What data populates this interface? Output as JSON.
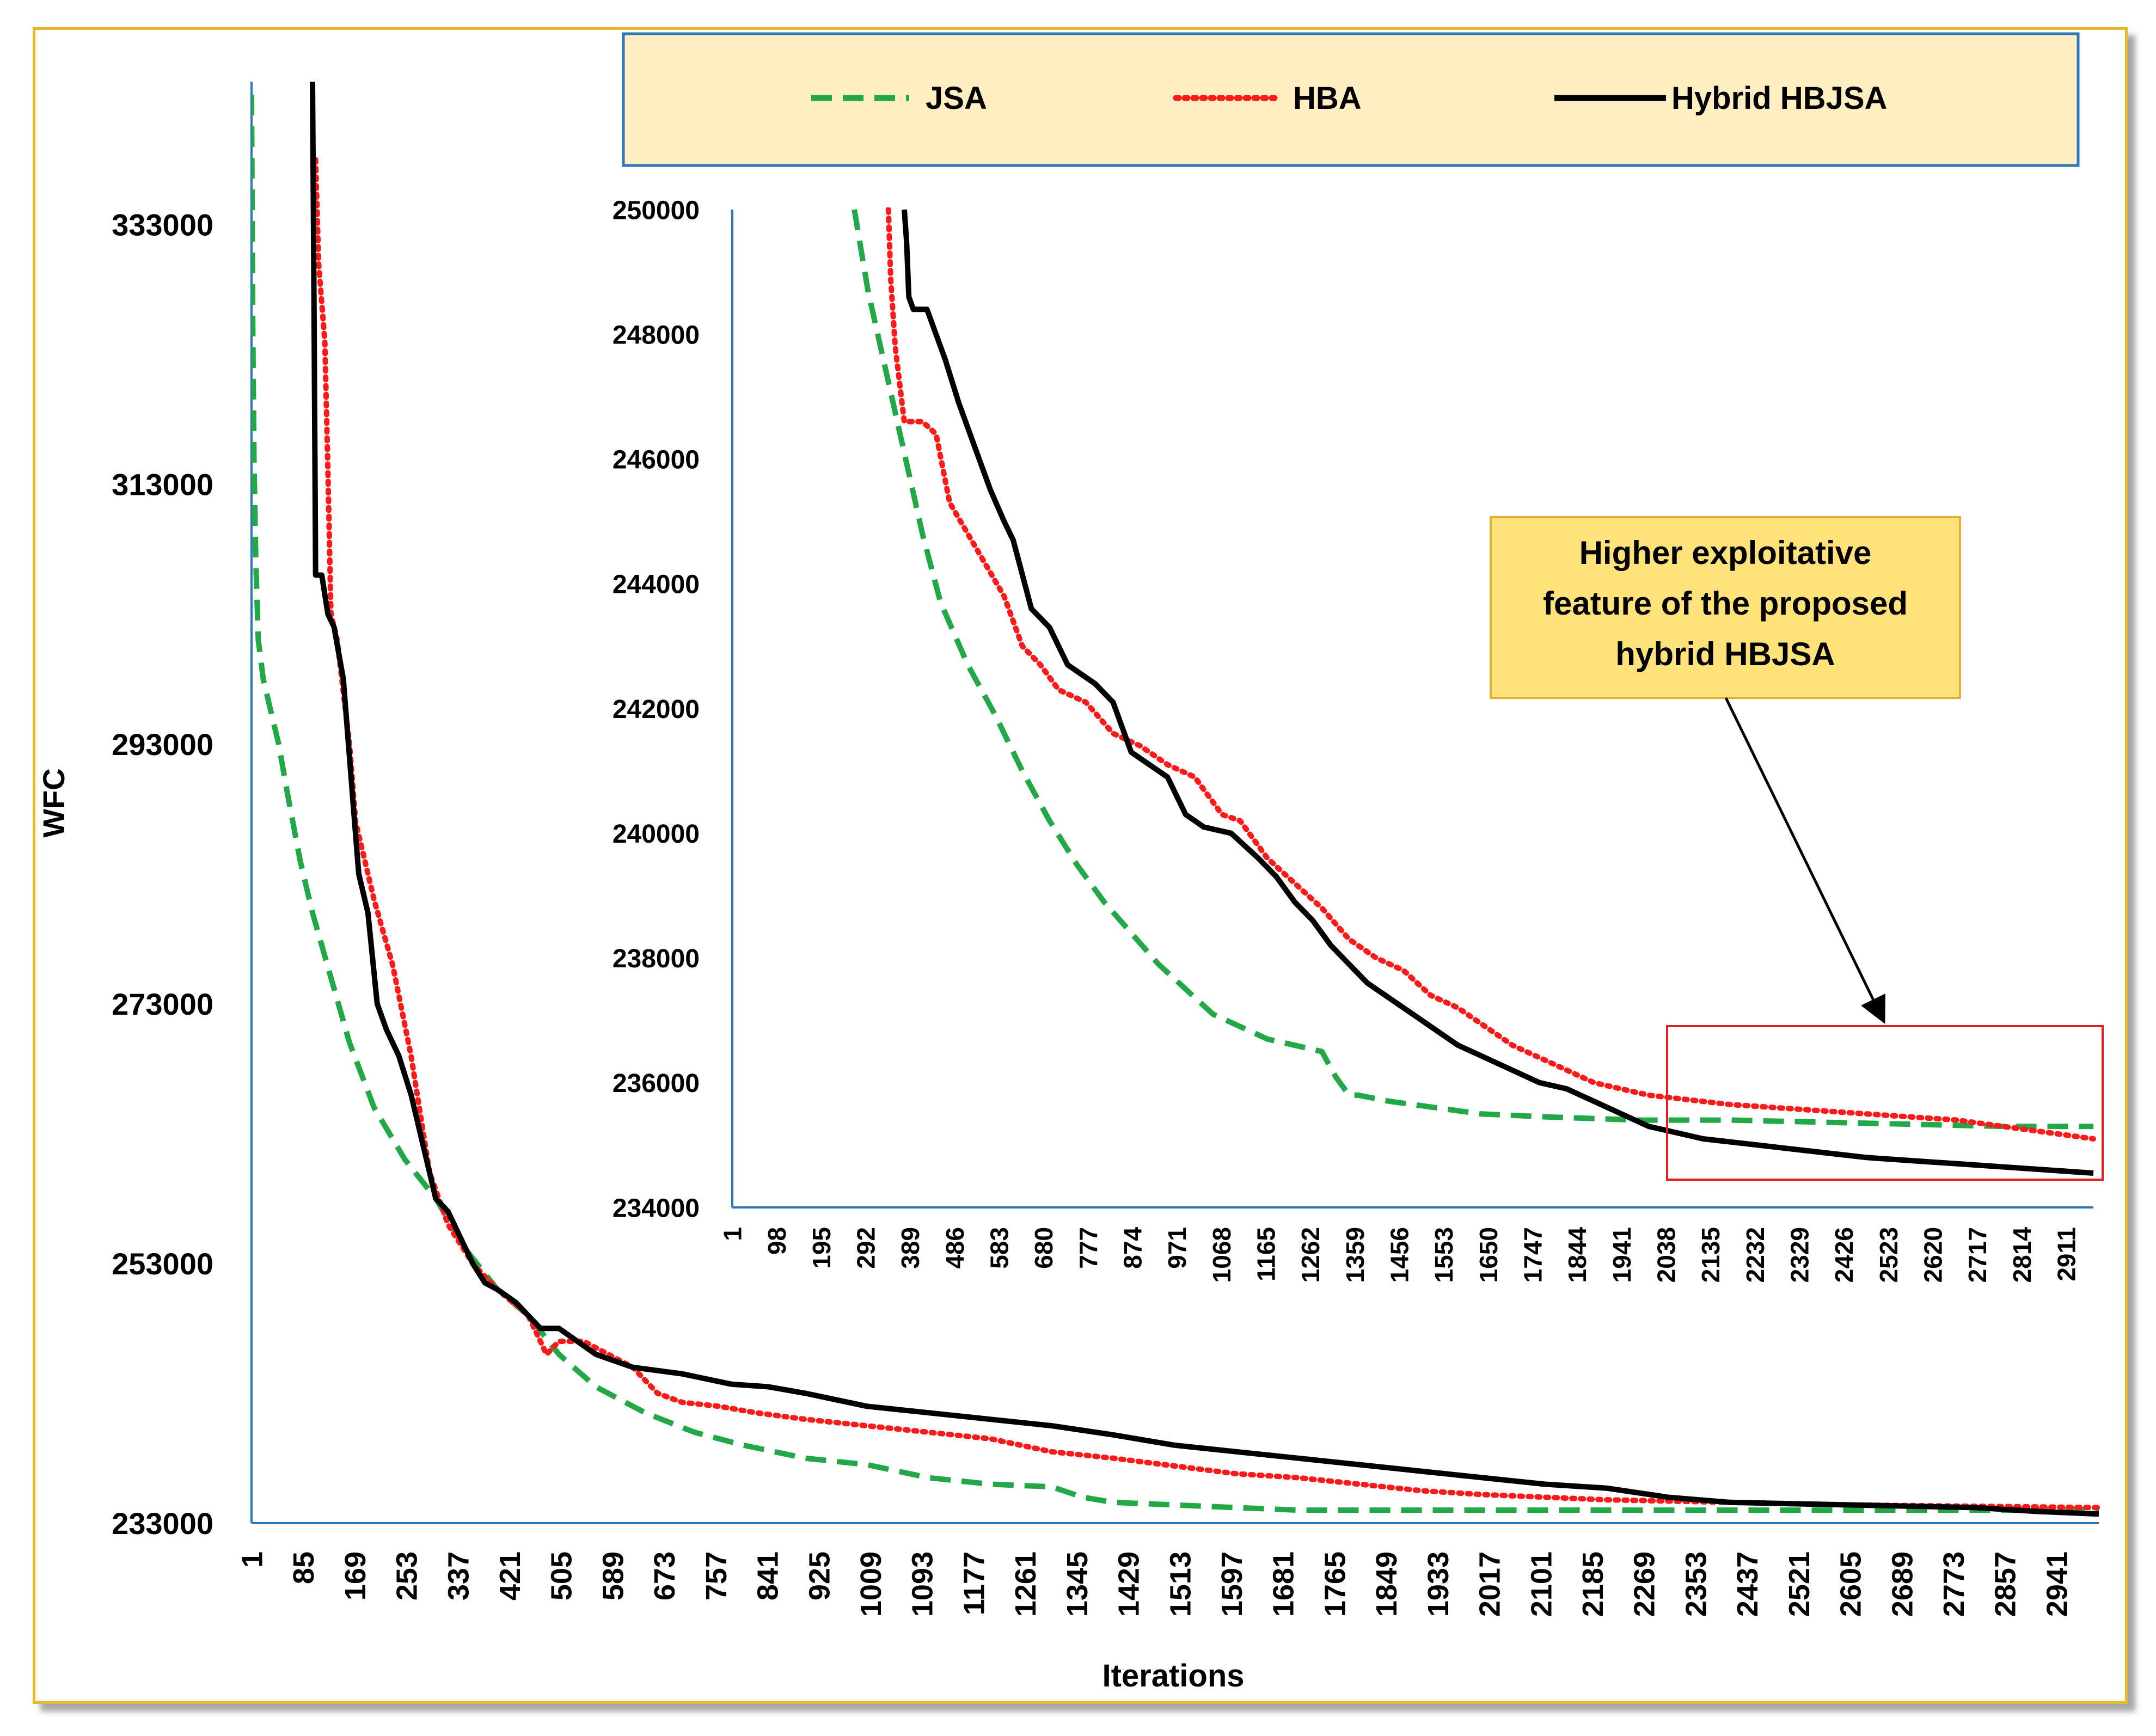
{
  "colors": {
    "jsa": "#22a846",
    "hba": "#ff1a1a",
    "hybrid": "#000000",
    "axis": "#2e75b6",
    "legend_bg": "#ffeec2",
    "note_bg": "#ffe27a",
    "frame": "#e8b830",
    "zoom_box": "#e02020"
  },
  "chart_data": [
    {
      "id": "main",
      "type": "line",
      "title": "",
      "xlabel": "Iterations",
      "ylabel": "WFC",
      "xlim": [
        1,
        3000
      ],
      "ylim": [
        233000,
        344000
      ],
      "yticks": [
        233000,
        253000,
        273000,
        293000,
        313000,
        333000
      ],
      "ytick_labels": [
        "233000",
        "253000",
        "273000",
        "293000",
        "313000",
        "333000"
      ],
      "xtick_labels": [
        "1",
        "85",
        "169",
        "253",
        "337",
        "421",
        "505",
        "589",
        "673",
        "757",
        "841",
        "925",
        "1009",
        "1093",
        "1177",
        "1261",
        "1345",
        "1429",
        "1513",
        "1597",
        "1681",
        "1765",
        "1849",
        "1933",
        "2017",
        "2101",
        "2185",
        "2269",
        "2353",
        "2437",
        "2521",
        "2605",
        "2689",
        "2773",
        "2857",
        "2941"
      ],
      "series": [
        {
          "name": "JSA",
          "style": "dashed",
          "x": [
            1,
            3,
            5,
            8,
            12,
            20,
            30,
            45,
            60,
            80,
            100,
            130,
            160,
            200,
            250,
            300,
            350,
            400,
            450,
            500,
            560,
            640,
            720,
            800,
            900,
            1000,
            1100,
            1200,
            1300,
            1350,
            1400,
            1500,
            1600,
            1700,
            1800,
            1900,
            2000,
            2200,
            2400,
            2600,
            2800,
            3000
          ],
          "y": [
            343000,
            325000,
            315000,
            307000,
            301000,
            298000,
            296000,
            293000,
            289000,
            284000,
            280000,
            275000,
            270000,
            265000,
            261000,
            258000,
            254000,
            251000,
            249000,
            246000,
            243500,
            241500,
            240000,
            239000,
            238000,
            237500,
            236500,
            236000,
            235800,
            235000,
            234600,
            234400,
            234200,
            234000,
            234000,
            234000,
            234000,
            234000,
            234000,
            234000,
            234000,
            234000
          ]
        },
        {
          "name": "HBA",
          "style": "dotted",
          "x": [
            105,
            110,
            120,
            125,
            130,
            140,
            150,
            160,
            170,
            185,
            200,
            230,
            260,
            290,
            320,
            360,
            400,
            450,
            480,
            500,
            540,
            580,
            620,
            660,
            700,
            760,
            820,
            900,
            1000,
            1100,
            1200,
            1300,
            1400,
            1500,
            1600,
            1700,
            1800,
            1900,
            2000,
            2100,
            2200,
            2300,
            2400,
            2500,
            2600,
            2700,
            2800,
            2900,
            3000
          ],
          "y": [
            338000,
            330000,
            324000,
            314000,
            303000,
            301000,
            297000,
            293000,
            287000,
            284000,
            281000,
            276000,
            269000,
            260000,
            256000,
            253000,
            251000,
            249000,
            246000,
            247000,
            247000,
            246000,
            245000,
            243000,
            242300,
            242000,
            241500,
            241000,
            240500,
            240000,
            239500,
            238500,
            238000,
            237400,
            236800,
            236500,
            236000,
            235500,
            235200,
            235000,
            234800,
            234700,
            234600,
            234500,
            234400,
            234350,
            234300,
            234250,
            234200
          ]
        },
        {
          "name": "Hybrid HBJSA",
          "style": "solid",
          "x": [
            100,
            102,
            105,
            115,
            125,
            135,
            150,
            165,
            175,
            190,
            205,
            220,
            240,
            260,
            280,
            300,
            320,
            340,
            360,
            380,
            400,
            430,
            470,
            500,
            560,
            620,
            700,
            780,
            840,
            900,
            1000,
            1100,
            1200,
            1300,
            1400,
            1500,
            1600,
            1700,
            1800,
            1900,
            2000,
            2100,
            2200,
            2300,
            2400,
            2500,
            2600,
            2700,
            2800,
            2900,
            3000
          ],
          "y": [
            344000,
            330000,
            306000,
            306000,
            303000,
            302000,
            298000,
            289000,
            283000,
            280000,
            273000,
            271000,
            269000,
            266000,
            262000,
            258000,
            257000,
            255000,
            253000,
            251500,
            251000,
            250000,
            248000,
            248000,
            246000,
            245000,
            244500,
            243700,
            243500,
            243000,
            242000,
            241500,
            241000,
            240500,
            239800,
            239000,
            238500,
            238000,
            237500,
            237000,
            236500,
            236000,
            235700,
            235000,
            234600,
            234500,
            234400,
            234300,
            234200,
            233900,
            233700
          ]
        }
      ]
    },
    {
      "id": "inset",
      "type": "line",
      "xlabel": "",
      "ylabel": "",
      "xlim": [
        1,
        3000
      ],
      "ylim": [
        234000,
        250000
      ],
      "yticks": [
        234000,
        236000,
        238000,
        240000,
        242000,
        244000,
        246000,
        248000,
        250000
      ],
      "ytick_labels": [
        "234000",
        "236000",
        "238000",
        "240000",
        "242000",
        "244000",
        "246000",
        "248000",
        "250000"
      ],
      "xtick_labels": [
        "1",
        "98",
        "195",
        "292",
        "389",
        "486",
        "583",
        "680",
        "777",
        "874",
        "971",
        "1068",
        "1165",
        "1262",
        "1359",
        "1456",
        "1553",
        "1650",
        "1747",
        "1844",
        "1941",
        "2038",
        "2135",
        "2232",
        "2329",
        "2426",
        "2523",
        "2620",
        "2717",
        "2814",
        "2911"
      ],
      "series": [
        {
          "name": "JSA",
          "style": "dashed",
          "x": [
            270,
            300,
            340,
            380,
            420,
            460,
            520,
            580,
            640,
            700,
            760,
            820,
            880,
            940,
            1000,
            1060,
            1120,
            1180,
            1240,
            1300,
            1330,
            1350,
            1360,
            1380,
            1450,
            1550,
            1650,
            1800,
            2000,
            2200,
            2500,
            2800,
            3000
          ],
          "y": [
            250000,
            248700,
            247400,
            246100,
            244800,
            243700,
            242700,
            241900,
            241000,
            240200,
            239500,
            238900,
            238400,
            237900,
            237500,
            237100,
            236900,
            236700,
            236600,
            236500,
            236100,
            235900,
            235800,
            235800,
            235700,
            235600,
            235500,
            235450,
            235400,
            235400,
            235350,
            235300,
            235300
          ]
        },
        {
          "name": "HBA",
          "style": "dotted",
          "x": [
            345,
            350,
            360,
            380,
            420,
            450,
            480,
            520,
            560,
            600,
            640,
            680,
            720,
            780,
            840,
            900,
            960,
            1020,
            1080,
            1120,
            1180,
            1240,
            1300,
            1360,
            1420,
            1480,
            1540,
            1600,
            1660,
            1720,
            1780,
            1840,
            1900,
            1960,
            2020,
            2080,
            2140,
            2200,
            2300,
            2400,
            2500,
            2600,
            2700,
            2800,
            2900,
            3000
          ],
          "y": [
            250000,
            248900,
            247800,
            246600,
            246600,
            246400,
            245300,
            244800,
            244300,
            243800,
            243000,
            242700,
            242300,
            242100,
            241600,
            241400,
            241100,
            240900,
            240300,
            240200,
            239600,
            239200,
            238800,
            238300,
            238000,
            237800,
            237400,
            237200,
            236900,
            236600,
            236400,
            236200,
            236000,
            235900,
            235800,
            235750,
            235700,
            235650,
            235600,
            235550,
            235500,
            235450,
            235400,
            235300,
            235200,
            235100
          ]
        },
        {
          "name": "Hybrid HBJSA",
          "style": "solid",
          "x": [
            380,
            385,
            390,
            400,
            430,
            470,
            500,
            540,
            570,
            600,
            620,
            660,
            700,
            740,
            760,
            800,
            840,
            880,
            920,
            960,
            1000,
            1040,
            1100,
            1160,
            1200,
            1240,
            1280,
            1320,
            1360,
            1400,
            1440,
            1480,
            1520,
            1560,
            1600,
            1660,
            1720,
            1780,
            1840,
            1900,
            1960,
            2020,
            2080,
            2140,
            2200,
            2260,
            2320,
            2380,
            2440,
            2500,
            2600,
            2700,
            2800,
            2900,
            3000
          ],
          "y": [
            250000,
            249500,
            248600,
            248400,
            248400,
            247600,
            246900,
            246100,
            245500,
            245000,
            244700,
            243600,
            243300,
            242700,
            242600,
            242400,
            242100,
            241300,
            241100,
            240900,
            240300,
            240100,
            240000,
            239600,
            239300,
            238900,
            238600,
            238200,
            237900,
            237600,
            237400,
            237200,
            237000,
            236800,
            236600,
            236400,
            236200,
            236000,
            235900,
            235700,
            235500,
            235300,
            235200,
            235100,
            235050,
            235000,
            234950,
            234900,
            234850,
            234800,
            234750,
            234700,
            234650,
            234600,
            234550
          ]
        }
      ]
    }
  ],
  "legend": {
    "items": [
      "JSA",
      "HBA",
      "Hybrid HBJSA"
    ]
  },
  "annotation": {
    "lines": [
      "Higher exploitative",
      "feature of the proposed",
      "hybrid HBJSA"
    ]
  }
}
